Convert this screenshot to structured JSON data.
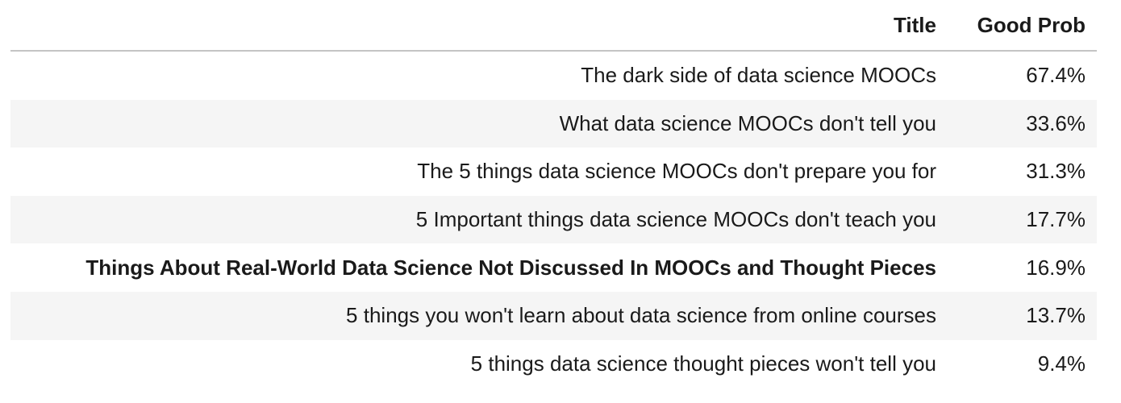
{
  "chart_data": {
    "type": "table",
    "columns": [
      "Title",
      "Good Prob"
    ],
    "rows": [
      {
        "title": "The dark side of data science MOOCs",
        "good_prob": "67.4%",
        "bold": false
      },
      {
        "title": "What data science MOOCs don't tell you",
        "good_prob": "33.6%",
        "bold": false
      },
      {
        "title": "The 5 things data science MOOCs don't prepare you for",
        "good_prob": "31.3%",
        "bold": false
      },
      {
        "title": "5 Important things data science MOOCs don't teach you",
        "good_prob": "17.7%",
        "bold": false
      },
      {
        "title": "Things About Real-World Data Science Not Discussed In MOOCs and Thought Pieces",
        "good_prob": "16.9%",
        "bold": true
      },
      {
        "title": "5 things you won't learn about data science from online courses",
        "good_prob": "13.7%",
        "bold": false
      },
      {
        "title": "5 things data science thought pieces won't tell you",
        "good_prob": "9.4%",
        "bold": false
      }
    ]
  }
}
